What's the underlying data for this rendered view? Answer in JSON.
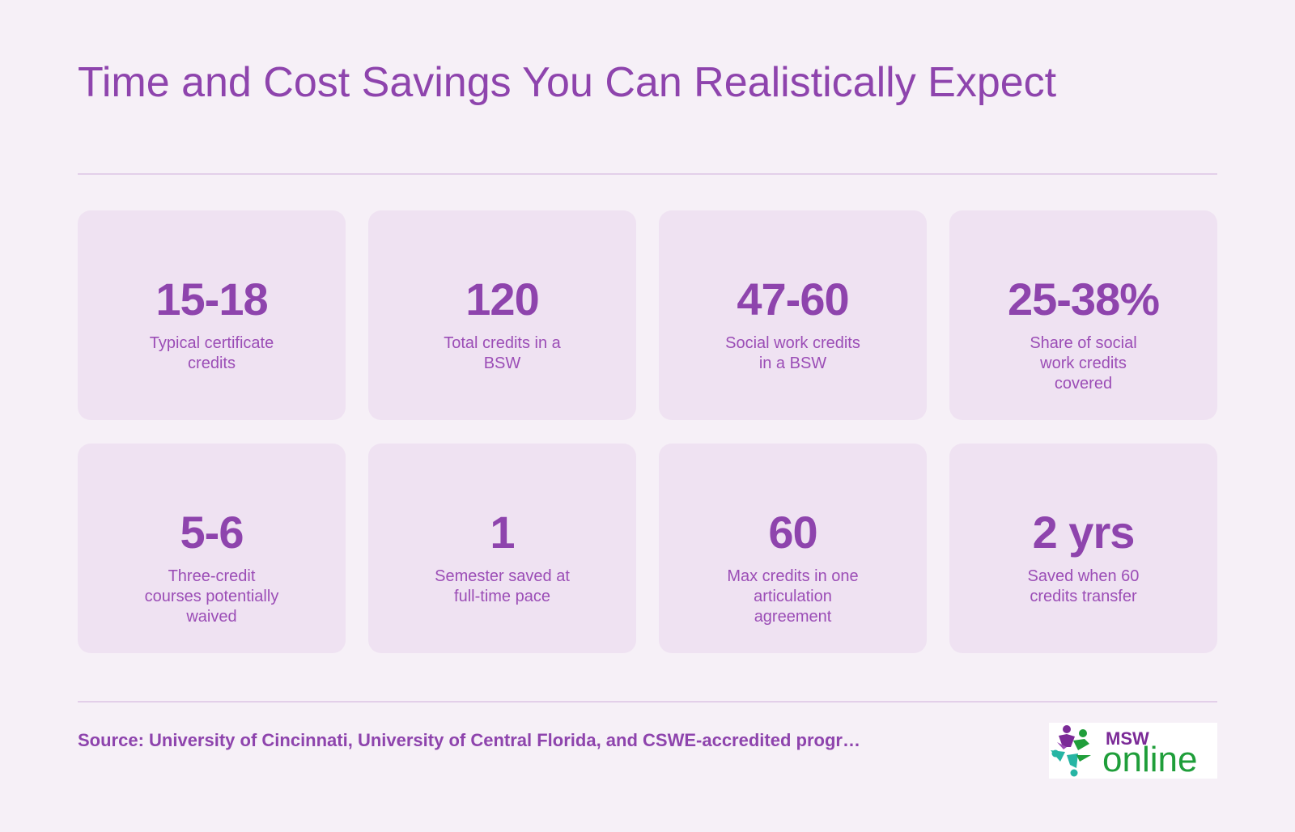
{
  "header": {
    "title": "Time and Cost Savings You Can Realistically Expect"
  },
  "stats": [
    {
      "value": "15-18",
      "label": "Typical certificate credits"
    },
    {
      "value": "120",
      "label": "Total credits in a BSW"
    },
    {
      "value": "47-60",
      "label": "Social work credits in a BSW"
    },
    {
      "value": "25-38%",
      "label": "Share of social work credits covered"
    },
    {
      "value": "5-6",
      "label": "Three-credit courses potentially waived"
    },
    {
      "value": "1",
      "label": "Semester saved at full-time pace"
    },
    {
      "value": "60",
      "label": "Max credits in one articulation agreement"
    },
    {
      "value": "2 yrs",
      "label": "Saved when 60 credits transfer"
    }
  ],
  "footer": {
    "source": "Source: University of Cincinnati, University of Central Florida, and CSWE-accredited progr…",
    "logo": {
      "top_text": "MSW",
      "main_text": "online",
      "icon": "star-people-icon"
    }
  },
  "colors": {
    "background": "#f6f0f7",
    "card": "#efe2f2",
    "accent": "#8e44ad",
    "rule": "#e3cfe9",
    "logo_purple": "#7b2a97",
    "logo_green": "#1f9e3a",
    "logo_teal": "#26b5a4"
  }
}
